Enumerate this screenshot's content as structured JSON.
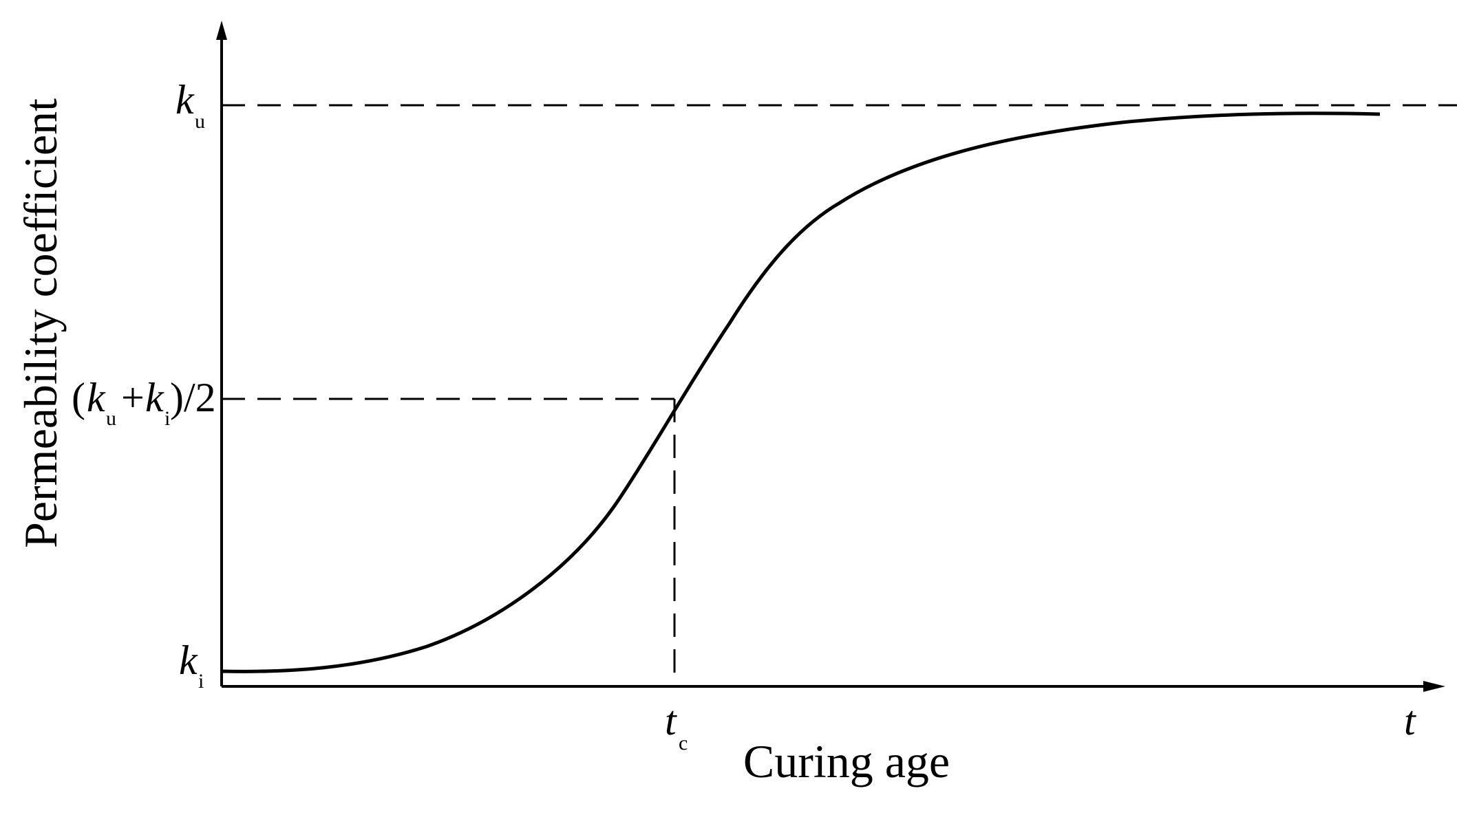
{
  "chart_data": {
    "type": "line",
    "xlabel": "Curing age",
    "ylabel": "Permeability coefficient",
    "x_axis_end_label": {
      "main": "t",
      "sub": ""
    },
    "x_ticks": [
      {
        "main": "t",
        "sub": "c",
        "at_fraction_of_axis": 0.33
      }
    ],
    "y_ticks": [
      {
        "main": "k",
        "sub": "u",
        "role": "upper"
      },
      {
        "pre": "(",
        "k1": "k",
        "s1": "u",
        "plus": "+",
        "k2": "k",
        "s2": "i",
        "post": ")/2",
        "role": "mid"
      },
      {
        "main": "k",
        "sub": "i",
        "role": "lower"
      }
    ],
    "curve": {
      "description": "sigmoid",
      "start_fraction": 0.96,
      "midpoint_x_fraction": 0.33,
      "x_end_fraction": 0.85,
      "series": [
        {
          "x": 0.0,
          "y": 0.025
        },
        {
          "x": 0.1,
          "y": 0.032
        },
        {
          "x": 0.18,
          "y": 0.08
        },
        {
          "x": 0.26,
          "y": 0.28
        },
        {
          "x": 0.33,
          "y": 0.5
        },
        {
          "x": 0.4,
          "y": 0.7
        },
        {
          "x": 0.5,
          "y": 0.82
        },
        {
          "x": 0.6,
          "y": 0.89
        },
        {
          "x": 0.7,
          "y": 0.93
        },
        {
          "x": 0.85,
          "y": 0.95
        }
      ]
    },
    "guides": {
      "upper_dashed": true,
      "mid_dashed": true,
      "vertical_dashed_at_tc": true
    },
    "grid": false,
    "legend": "none"
  }
}
